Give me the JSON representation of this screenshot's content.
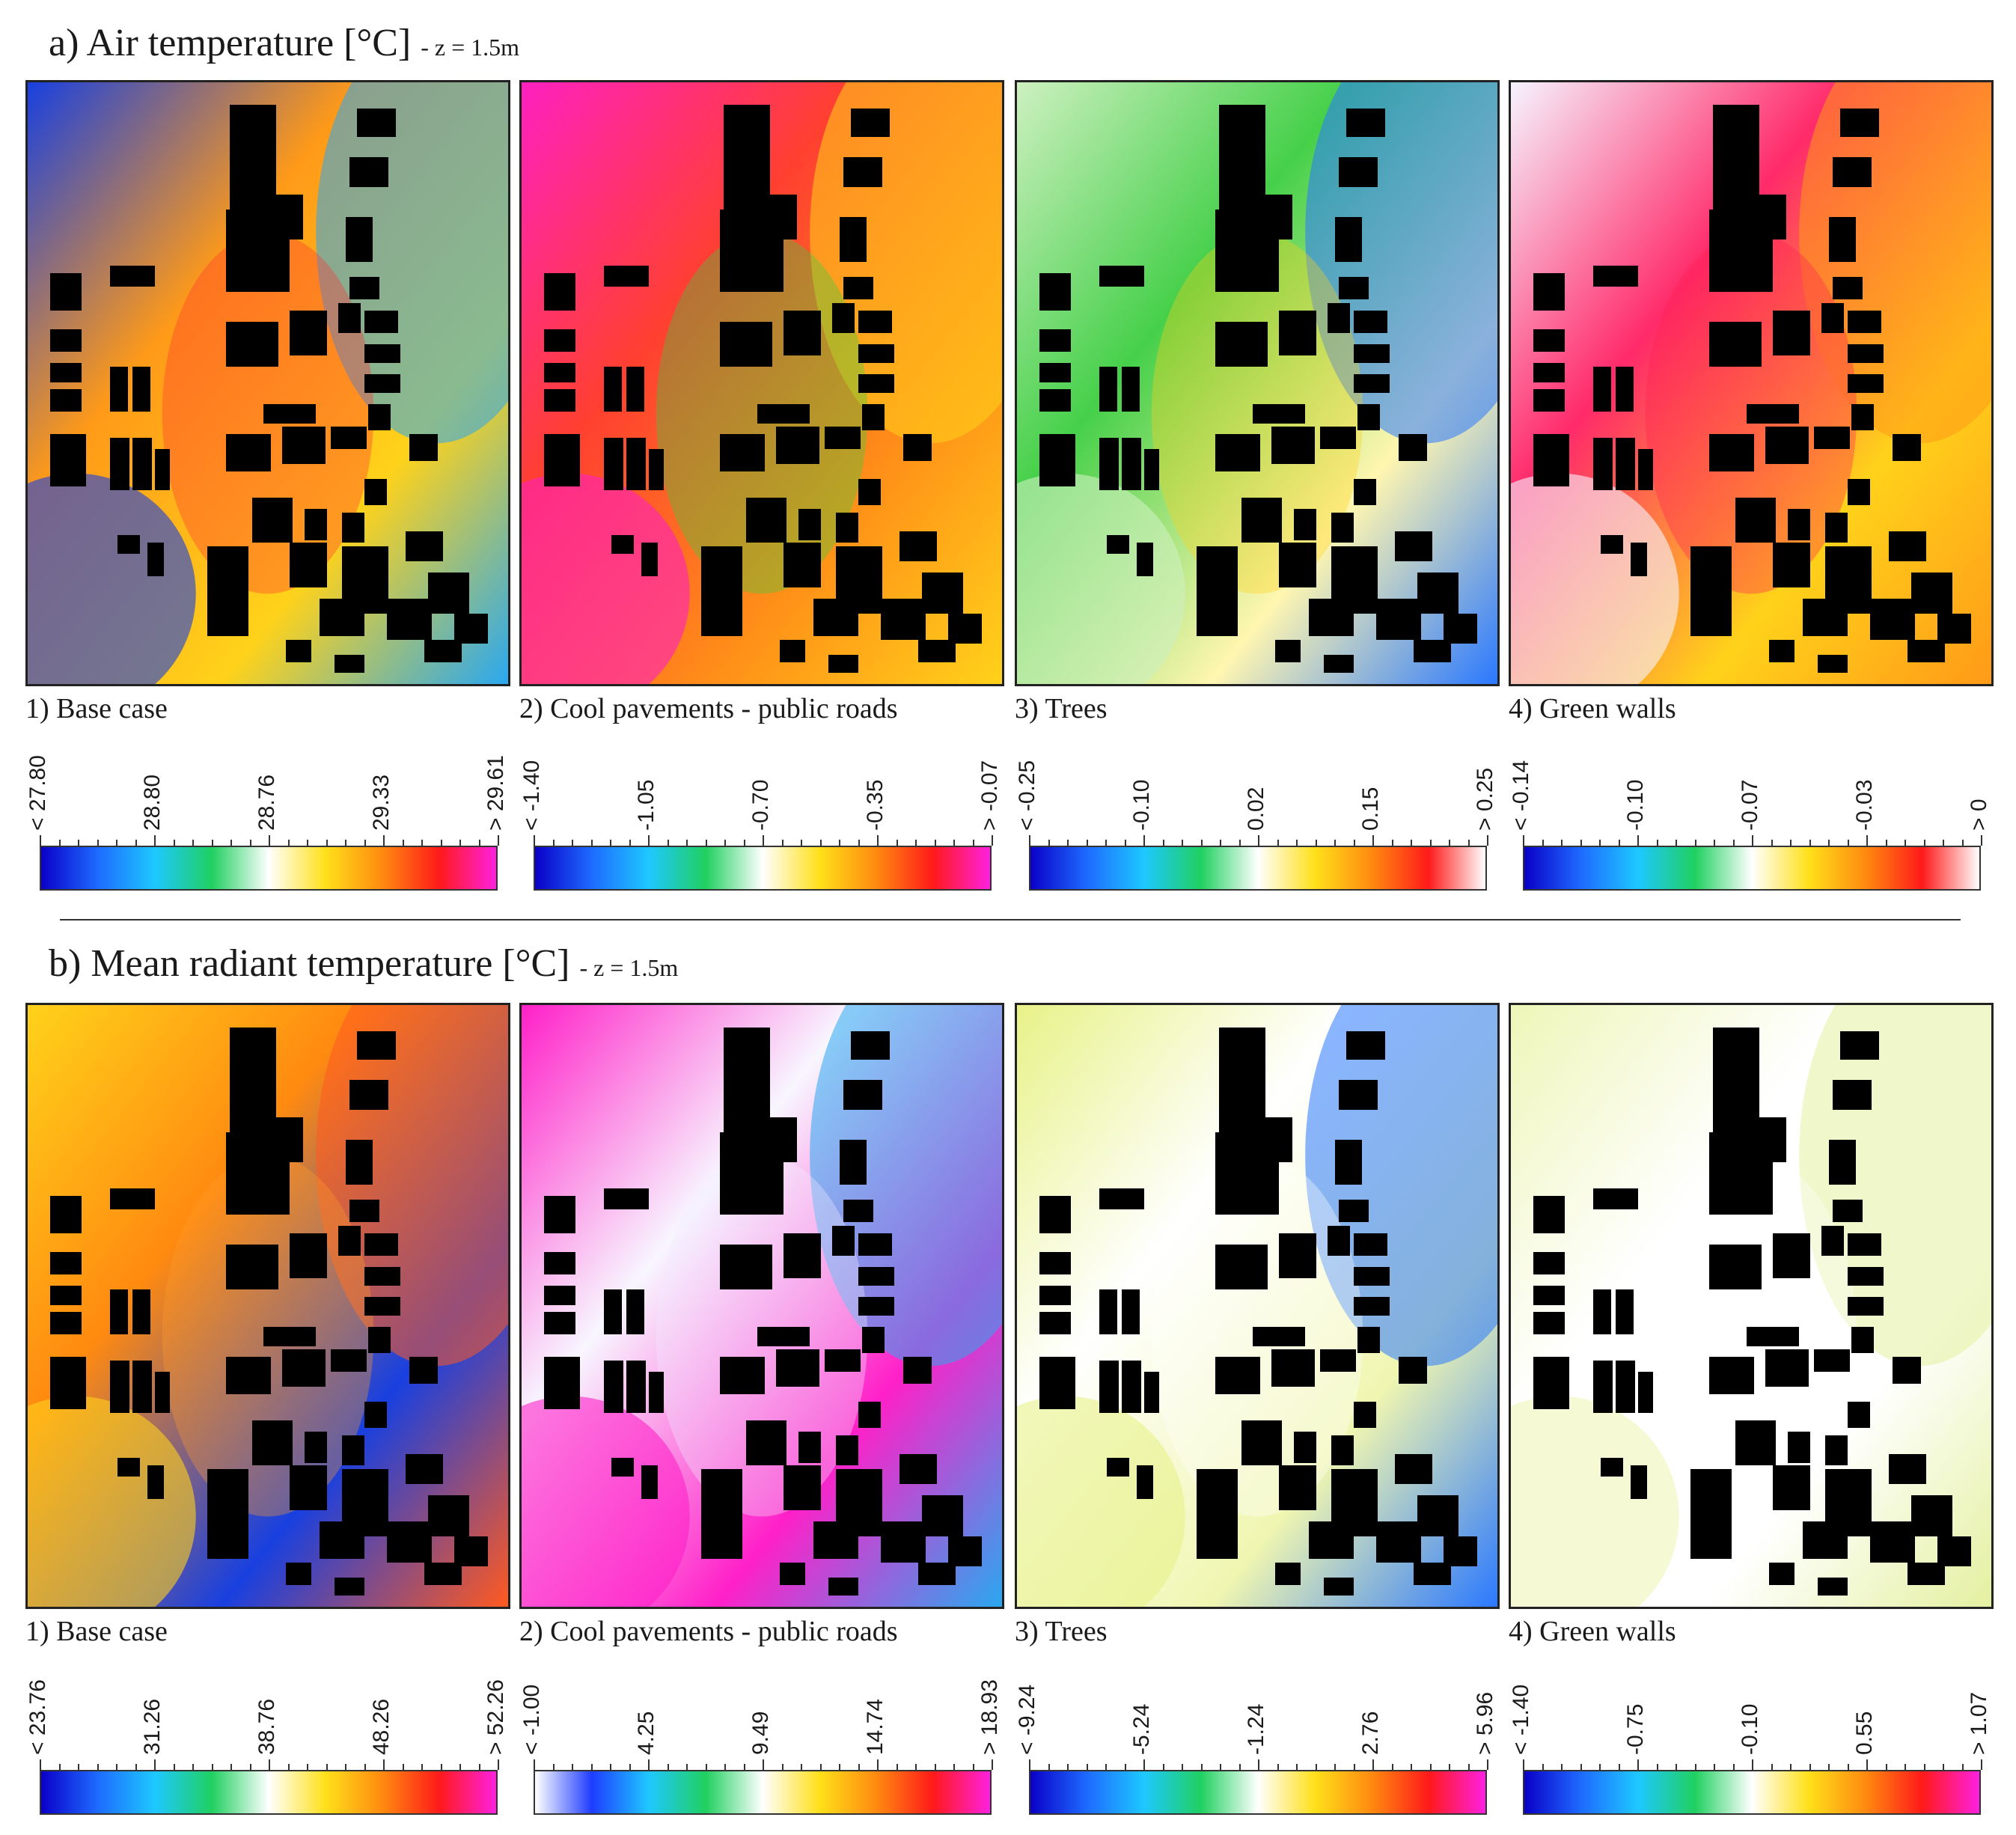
{
  "section_a": {
    "title": "a) Air temperature [°C]",
    "subtitle": "- z = 1.5m"
  },
  "section_b": {
    "title": "b) Mean radiant temperature [°C]",
    "subtitle": "- z = 1.5m"
  },
  "chart_data": [
    {
      "type": "heatmap",
      "title": "Air temperature [°C] - z = 1.5m",
      "panel": "1) Base case",
      "colormap": "rainbow",
      "scale_labels": [
        "< 27.80",
        "28.80",
        "28.76",
        "29.33",
        "> 29.61"
      ],
      "base": "#ff9a18",
      "colors": [
        "#1840e0",
        "#2aa8f0",
        "#ffd21a",
        "#ff3030"
      ]
    },
    {
      "type": "heatmap",
      "title": "Air temperature [°C] - z = 1.5m",
      "panel": "2) Cool pavements - public roads",
      "colormap": "rainbow",
      "scale_labels": [
        "< -1.40",
        "-1.05",
        "-0.70",
        "-0.35",
        "> -0.07"
      ],
      "base": "#ff4030",
      "colors": [
        "#ff20c0",
        "#ffd21a",
        "#ff9018",
        "#30d040"
      ]
    },
    {
      "type": "heatmap",
      "title": "Air temperature [°C] - z = 1.5m",
      "panel": "3) Trees",
      "colormap": "rainbow_white_top",
      "scale_labels": [
        "< -0.25",
        "-0.10",
        "0.02",
        "0.15",
        "> 0.25"
      ],
      "base": "#46d04a",
      "colors": [
        "#cdf0c0",
        "#2a78ff",
        "#fff6b0",
        "#ffd21a"
      ]
    },
    {
      "type": "heatmap",
      "title": "Air temperature [°C] - z = 1.5m",
      "panel": "4) Green walls",
      "colormap": "rainbow_white_top",
      "scale_labels": [
        "< -0.14",
        "-0.10",
        "-0.07",
        "-0.03",
        "> 0"
      ],
      "base": "#ff2a6a",
      "colors": [
        "#f6f4ff",
        "#ff9a18",
        "#ffd21a",
        "#ff2050"
      ]
    },
    {
      "type": "heatmap",
      "title": "Mean radiant temperature [°C] - z = 1.5m",
      "panel": "1) Base case",
      "colormap": "rainbow",
      "scale_labels": [
        "< 23.76",
        "31.26",
        "38.76",
        "48.26",
        "> 52.26"
      ],
      "base": "#ff8a10",
      "colors": [
        "#ffd21a",
        "#ff5a20",
        "#1840e0",
        "#ff9a28"
      ]
    },
    {
      "type": "heatmap",
      "title": "Mean radiant temperature [°C] - z = 1.5m",
      "panel": "2) Cool pavements - public roads",
      "colormap": "white_rainbow",
      "scale_labels": [
        "< -1.00",
        "4.25",
        "9.49",
        "14.74",
        "> 18.93"
      ],
      "base": "#f8f6ff",
      "colors": [
        "#ff20c8",
        "#2aa8f0",
        "#ff20c8",
        "#f0ecff"
      ]
    },
    {
      "type": "heatmap",
      "title": "Mean radiant temperature [°C] - z = 1.5m",
      "panel": "3) Trees",
      "colormap": "rainbow",
      "scale_labels": [
        "< -9.24",
        "-5.24",
        "-1.24",
        "2.76",
        "> 5.96"
      ],
      "base": "#ffffff",
      "colors": [
        "#e8f288",
        "#2a78ff",
        "#f0f6b0",
        "#ffffff"
      ]
    },
    {
      "type": "heatmap",
      "title": "Mean radiant temperature [°C] - z = 1.5m",
      "panel": "4) Green walls",
      "colormap": "rainbow",
      "scale_labels": [
        "< -1.40",
        "-0.75",
        "-0.10",
        "0.55",
        "> 1.07"
      ],
      "base": "#ffffff",
      "colors": [
        "#eef6b8",
        "#e4f0a0",
        "#ffffff",
        "#ffffff"
      ]
    }
  ],
  "colors": {
    "rainbow": [
      "#0a00c8",
      "#1e6bff",
      "#1ec8ff",
      "#20d060",
      "#ffffff",
      "#ffe01a",
      "#ff8a10",
      "#ff1a1a",
      "#ff20e0"
    ],
    "rainbow_white_top": [
      "#0a00c8",
      "#1e6bff",
      "#1ec8ff",
      "#20d060",
      "#ffffff",
      "#ffe01a",
      "#ff8a10",
      "#ff1a1a",
      "#ffffff"
    ],
    "white_rainbow": [
      "#ffffff",
      "#1e3cff",
      "#1ec8ff",
      "#20d060",
      "#ffffff",
      "#ffe01a",
      "#ff8a10",
      "#ff1a1a",
      "#ff20e0"
    ],
    "building": "#000000"
  }
}
